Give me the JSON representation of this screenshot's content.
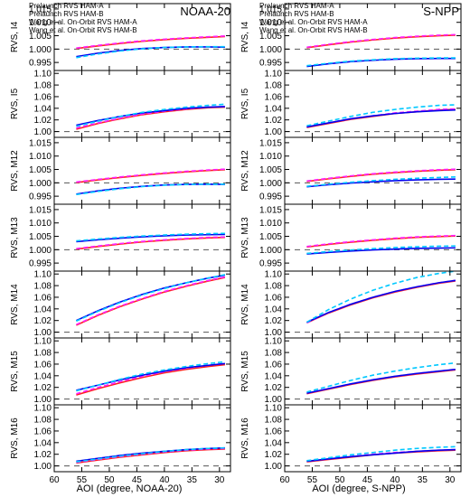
{
  "colors": {
    "prelaunch_a": "#ff2020",
    "prelaunch_b": "#ff20ff",
    "wang_a": "#0000ee",
    "wang_b": "#00c8ff",
    "axis": "#000000",
    "reference": "#555555"
  },
  "legend": [
    {
      "label": "Prelaunch RVS HAM-A",
      "color": "#ff2020"
    },
    {
      "label": "Prelaunch RVS HAM-B",
      "color": "#ff20ff"
    },
    {
      "label": "Wang et al. On-Orbit RVS HAM-A",
      "color": "#0000ee"
    },
    {
      "label": "Wang et al. On-Orbit RVS HAM-B",
      "color": "#00c8ff"
    }
  ],
  "columns": [
    {
      "title": "NOAA-20",
      "xlabel": "AOI (degree, NOAA-20)"
    },
    {
      "title": "S-NPP",
      "xlabel": "AOI (degree, S-NPP)"
    }
  ],
  "chart_data": {
    "type": "line",
    "description": "Grid of line charts: RVS vs AOI for bands I4, I5, M12-M16; two instruments",
    "x_axis": {
      "xlim": [
        60,
        28
      ],
      "ticks": [
        60,
        55,
        50,
        45,
        40,
        35,
        30
      ],
      "reversed": true
    },
    "x_sample_points": [
      56,
      52,
      48,
      44,
      40,
      36,
      32,
      29
    ],
    "series_names": [
      "Prelaunch RVS HAM-A",
      "Prelaunch RVS HAM-B",
      "Wang et al. On-Orbit RVS HAM-A",
      "Wang et al. On-Orbit RVS HAM-B"
    ],
    "reference_line": 1.0,
    "rows": [
      {
        "ylabel": "RVS, I4",
        "ylim": [
          0.992,
          1.017
        ],
        "yticks": [
          0.995,
          1.0,
          1.005,
          1.01,
          1.015
        ],
        "NOAA-20": {
          "Prelaunch RVS HAM-A": [
            1.0002,
            1.0012,
            1.0021,
            1.0029,
            1.0035,
            1.004,
            1.0044,
            1.0047
          ],
          "Prelaunch RVS HAM-B": [
            1.0004,
            1.0014,
            1.0023,
            1.0031,
            1.0037,
            1.0042,
            1.0046,
            1.0049
          ],
          "Wang et al. On-Orbit RVS HAM-A": [
            0.9972,
            0.9985,
            0.9995,
            1.0002,
            1.0006,
            1.0008,
            1.0008,
            1.0007
          ],
          "Wang et al. On-Orbit RVS HAM-B": [
            0.9968,
            0.9982,
            0.9993,
            1.0001,
            1.0006,
            1.0008,
            1.0009,
            1.0009
          ]
        },
        "S-NPP": {
          "Prelaunch RVS HAM-A": [
            1.0005,
            1.0016,
            1.0026,
            1.0034,
            1.0041,
            1.0046,
            1.005,
            1.0052
          ],
          "Prelaunch RVS HAM-B": [
            1.0007,
            1.0018,
            1.0028,
            1.0036,
            1.0043,
            1.0048,
            1.0052,
            1.0054
          ],
          "Wang et al. On-Orbit RVS HAM-A": [
            0.9935,
            0.9945,
            0.9953,
            0.9958,
            0.9962,
            0.9964,
            0.9965,
            0.9965
          ],
          "Wang et al. On-Orbit RVS HAM-B": [
            0.9938,
            0.9947,
            0.9955,
            0.996,
            0.9964,
            0.9966,
            0.9967,
            0.9967
          ]
        }
      },
      {
        "ylabel": "RVS, I5",
        "ylim": [
          0.99,
          1.105
        ],
        "yticks": [
          1.0,
          1.02,
          1.04,
          1.06,
          1.08,
          1.1
        ],
        "NOAA-20": {
          "Prelaunch RVS HAM-A": [
            1.004,
            1.014,
            1.022,
            1.029,
            1.034,
            1.038,
            1.041,
            1.042
          ],
          "Prelaunch RVS HAM-B": [
            1.006,
            1.015,
            1.023,
            1.03,
            1.035,
            1.039,
            1.042,
            1.043
          ],
          "Wang et al. On-Orbit RVS HAM-A": [
            1.011,
            1.019,
            1.026,
            1.032,
            1.036,
            1.04,
            1.042,
            1.043
          ],
          "Wang et al. On-Orbit RVS HAM-B": [
            1.009,
            1.018,
            1.026,
            1.033,
            1.038,
            1.042,
            1.045,
            1.047
          ]
        },
        "S-NPP": {
          "Prelaunch RVS HAM-A": [
            1.007,
            1.014,
            1.021,
            1.026,
            1.031,
            1.034,
            1.037,
            1.038
          ],
          "Prelaunch RVS HAM-B": [
            1.008,
            1.015,
            1.022,
            1.027,
            1.032,
            1.035,
            1.038,
            1.039
          ],
          "Wang et al. On-Orbit RVS HAM-A": [
            1.008,
            1.015,
            1.022,
            1.027,
            1.031,
            1.034,
            1.036,
            1.037
          ],
          "Wang et al. On-Orbit RVS HAM-B": [
            1.01,
            1.018,
            1.026,
            1.033,
            1.038,
            1.042,
            1.045,
            1.046
          ]
        }
      },
      {
        "ylabel": "RVS, M12",
        "ylim": [
          0.992,
          1.017
        ],
        "yticks": [
          0.995,
          1.0,
          1.005,
          1.01,
          1.015
        ],
        "NOAA-20": {
          "Prelaunch RVS HAM-A": [
            1.0001,
            1.0011,
            1.002,
            1.0028,
            1.0035,
            1.0041,
            1.0046,
            1.0049
          ],
          "Prelaunch RVS HAM-B": [
            1.0003,
            1.0013,
            1.0022,
            1.003,
            1.0037,
            1.0043,
            1.0048,
            1.0051
          ],
          "Wang et al. On-Orbit RVS HAM-A": [
            0.9958,
            0.997,
            0.998,
            0.9987,
            0.9992,
            0.9994,
            0.9995,
            0.9994
          ],
          "Wang et al. On-Orbit RVS HAM-B": [
            0.9956,
            0.9968,
            0.9978,
            0.9986,
            0.9991,
            0.9994,
            0.9995,
            0.9995
          ]
        },
        "S-NPP": {
          "Prelaunch RVS HAM-A": [
            1.0005,
            1.0015,
            1.0024,
            1.0032,
            1.0038,
            1.0043,
            1.0047,
            1.0049
          ],
          "Prelaunch RVS HAM-B": [
            1.0007,
            1.0017,
            1.0026,
            1.0034,
            1.004,
            1.0045,
            1.0049,
            1.0051
          ],
          "Wang et al. On-Orbit RVS HAM-A": [
            0.9985,
            0.9993,
            0.9999,
            1.0004,
            1.0008,
            1.0011,
            1.0013,
            1.0014
          ],
          "Wang et al. On-Orbit RVS HAM-B": [
            0.9987,
            0.9995,
            1.0002,
            1.0008,
            1.0013,
            1.0017,
            1.002,
            1.0022
          ]
        }
      },
      {
        "ylabel": "RVS, M13",
        "ylim": [
          0.992,
          1.017
        ],
        "yticks": [
          0.995,
          1.0,
          1.005,
          1.01,
          1.015
        ],
        "NOAA-20": {
          "Prelaunch RVS HAM-A": [
            1.0002,
            1.0012,
            1.0021,
            1.0029,
            1.0035,
            1.004,
            1.0044,
            1.0046
          ],
          "Prelaunch RVS HAM-B": [
            1.0004,
            1.0014,
            1.0023,
            1.0031,
            1.0037,
            1.0042,
            1.0046,
            1.0048
          ],
          "Wang et al. On-Orbit RVS HAM-A": [
            1.003,
            1.0037,
            1.0043,
            1.0048,
            1.0052,
            1.0055,
            1.0056,
            1.0057
          ],
          "Wang et al. On-Orbit RVS HAM-B": [
            1.0033,
            1.004,
            1.0046,
            1.0051,
            1.0055,
            1.0058,
            1.006,
            1.0061
          ]
        },
        "S-NPP": {
          "Prelaunch RVS HAM-A": [
            1.001,
            1.002,
            1.0028,
            1.0035,
            1.0041,
            1.0046,
            1.0049,
            1.0051
          ],
          "Prelaunch RVS HAM-B": [
            1.0012,
            1.0022,
            1.003,
            1.0037,
            1.0043,
            1.0048,
            1.0051,
            1.0053
          ],
          "Wang et al. On-Orbit RVS HAM-A": [
            0.9984,
            0.999,
            0.9995,
            0.9999,
            1.0002,
            1.0005,
            1.0006,
            1.0007
          ],
          "Wang et al. On-Orbit RVS HAM-B": [
            0.9986,
            0.9993,
            0.9999,
            1.0004,
            1.0008,
            1.0011,
            1.0013,
            1.0014
          ]
        }
      },
      {
        "ylabel": "RVS, M14",
        "ylim": [
          0.99,
          1.105
        ],
        "yticks": [
          1.0,
          1.02,
          1.04,
          1.06,
          1.08,
          1.1
        ],
        "NOAA-20": {
          "Prelaunch RVS HAM-A": [
            1.012,
            1.029,
            1.044,
            1.057,
            1.069,
            1.079,
            1.088,
            1.094
          ],
          "Prelaunch RVS HAM-B": [
            1.013,
            1.03,
            1.045,
            1.058,
            1.07,
            1.08,
            1.089,
            1.095
          ],
          "Wang et al. On-Orbit RVS HAM-A": [
            1.02,
            1.037,
            1.052,
            1.065,
            1.076,
            1.085,
            1.093,
            1.098
          ],
          "Wang et al. On-Orbit RVS HAM-B": [
            1.019,
            1.036,
            1.051,
            1.064,
            1.075,
            1.085,
            1.093,
            1.099
          ]
        },
        "S-NPP": {
          "Prelaunch RVS HAM-A": [
            1.016,
            1.033,
            1.047,
            1.059,
            1.069,
            1.077,
            1.084,
            1.088
          ],
          "Prelaunch RVS HAM-B": [
            1.016,
            1.034,
            1.048,
            1.06,
            1.07,
            1.078,
            1.085,
            1.089
          ],
          "Wang et al. On-Orbit RVS HAM-A": [
            1.017,
            1.034,
            1.048,
            1.06,
            1.07,
            1.078,
            1.085,
            1.089
          ],
          "Wang et al. On-Orbit RVS HAM-B": [
            1.017,
            1.039,
            1.057,
            1.072,
            1.084,
            1.094,
            1.101,
            1.105
          ]
        }
      },
      {
        "ylabel": "RVS, M15",
        "ylim": [
          0.99,
          1.105
        ],
        "yticks": [
          1.0,
          1.02,
          1.04,
          1.06,
          1.08,
          1.1
        ],
        "NOAA-20": {
          "Prelaunch RVS HAM-A": [
            1.007,
            1.018,
            1.028,
            1.037,
            1.045,
            1.051,
            1.056,
            1.059
          ],
          "Prelaunch RVS HAM-B": [
            1.009,
            1.02,
            1.03,
            1.039,
            1.047,
            1.053,
            1.058,
            1.061
          ],
          "Wang et al. On-Orbit RVS HAM-A": [
            1.015,
            1.024,
            1.033,
            1.041,
            1.048,
            1.054,
            1.058,
            1.061
          ],
          "Wang et al. On-Orbit RVS HAM-B": [
            1.014,
            1.024,
            1.034,
            1.043,
            1.05,
            1.056,
            1.061,
            1.064
          ]
        },
        "S-NPP": {
          "Prelaunch RVS HAM-A": [
            1.009,
            1.017,
            1.025,
            1.032,
            1.038,
            1.043,
            1.047,
            1.05
          ],
          "Prelaunch RVS HAM-B": [
            1.01,
            1.018,
            1.026,
            1.033,
            1.039,
            1.044,
            1.048,
            1.051
          ],
          "Wang et al. On-Orbit RVS HAM-A": [
            1.01,
            1.018,
            1.026,
            1.033,
            1.039,
            1.044,
            1.048,
            1.051
          ],
          "Wang et al. On-Orbit RVS HAM-B": [
            1.012,
            1.022,
            1.032,
            1.041,
            1.048,
            1.054,
            1.059,
            1.062
          ]
        }
      },
      {
        "ylabel": "RVS, M16",
        "ylim": [
          0.99,
          1.105
        ],
        "yticks": [
          1.0,
          1.02,
          1.04,
          1.06,
          1.08,
          1.1
        ],
        "NOAA-20": {
          "Prelaunch RVS HAM-A": [
            1.005,
            1.01,
            1.015,
            1.019,
            1.023,
            1.026,
            1.028,
            1.029
          ],
          "Prelaunch RVS HAM-B": [
            1.006,
            1.011,
            1.016,
            1.02,
            1.024,
            1.027,
            1.029,
            1.03
          ],
          "Wang et al. On-Orbit RVS HAM-A": [
            1.008,
            1.013,
            1.018,
            1.022,
            1.025,
            1.028,
            1.03,
            1.031
          ],
          "Wang et al. On-Orbit RVS HAM-B": [
            1.007,
            1.012,
            1.017,
            1.021,
            1.025,
            1.028,
            1.03,
            1.031
          ]
        },
        "S-NPP": {
          "Prelaunch RVS HAM-A": [
            1.007,
            1.011,
            1.015,
            1.019,
            1.022,
            1.024,
            1.026,
            1.027
          ],
          "Prelaunch RVS HAM-B": [
            1.008,
            1.012,
            1.016,
            1.02,
            1.023,
            1.025,
            1.027,
            1.028
          ],
          "Wang et al. On-Orbit RVS HAM-A": [
            1.008,
            1.012,
            1.016,
            1.019,
            1.022,
            1.025,
            1.027,
            1.028
          ],
          "Wang et al. On-Orbit RVS HAM-B": [
            1.009,
            1.014,
            1.019,
            1.023,
            1.027,
            1.03,
            1.032,
            1.033
          ]
        }
      }
    ]
  }
}
